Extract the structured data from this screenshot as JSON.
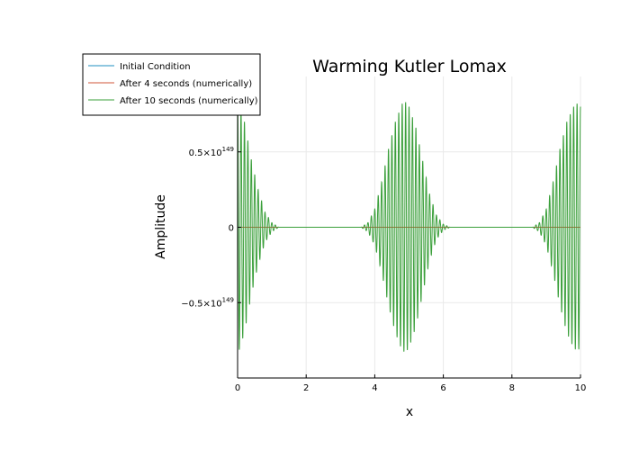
{
  "chart_data": {
    "type": "line",
    "title": "Warming Kutler Lomax",
    "xlabel": "x",
    "ylabel": "Amplitude",
    "xlim": [
      0,
      10
    ],
    "ylim": [
      -1e+149,
      1e+149
    ],
    "x_ticks": [
      0,
      2,
      4,
      6,
      8,
      10
    ],
    "x_tick_labels": [
      "0",
      "2",
      "4",
      "6",
      "8",
      "10"
    ],
    "y_ticks": [
      -5e+148,
      0,
      5e+148
    ],
    "y_tick_labels": [
      {
        "mantissa": "−0.5×10",
        "exp": "149"
      },
      {
        "mantissa": "0",
        "exp": ""
      },
      {
        "mantissa": "0.5×10",
        "exp": "149"
      }
    ],
    "grid": true,
    "legend_position": "top-left",
    "series": [
      {
        "name": "Initial Condition",
        "color": "#1f8fc0",
        "description": "indistinguishable from zero at this scale",
        "points": [
          [
            0,
            0
          ],
          [
            10,
            0
          ]
        ]
      },
      {
        "name": "After 4 seconds (numerically)",
        "color": "#d2553a",
        "description": "indistinguishable from zero at this scale",
        "points": [
          [
            0,
            0
          ],
          [
            10,
            0
          ]
        ]
      },
      {
        "name": "After 10 seconds (numerically)",
        "color": "#3a9f3a",
        "oscillation_cycles_per_unit": 10,
        "envelope": [
          [
            0.0,
            8.5e+148
          ],
          [
            0.2,
            7e+148
          ],
          [
            0.4,
            4.5e+148
          ],
          [
            0.6,
            2.5e+148
          ],
          [
            0.8,
            1e+148
          ],
          [
            1.0,
            3e+147
          ],
          [
            1.2,
            0.0
          ],
          [
            3.6,
            0.0
          ],
          [
            3.8,
            3e+147
          ],
          [
            4.0,
            1.2e+148
          ],
          [
            4.2,
            3e+148
          ],
          [
            4.4,
            5.2e+148
          ],
          [
            4.6,
            7e+148
          ],
          [
            4.8,
            8.2e+148
          ],
          [
            4.9,
            8.3e+148
          ],
          [
            5.0,
            8e+148
          ],
          [
            5.2,
            6.6e+148
          ],
          [
            5.4,
            4.4e+148
          ],
          [
            5.6,
            2.2e+148
          ],
          [
            5.8,
            8e+147
          ],
          [
            6.0,
            2e+147
          ],
          [
            6.2,
            0.0
          ],
          [
            8.6,
            0.0
          ],
          [
            8.8,
            3e+147
          ],
          [
            9.0,
            1.2e+148
          ],
          [
            9.2,
            3e+148
          ],
          [
            9.4,
            5.2e+148
          ],
          [
            9.6,
            7e+148
          ],
          [
            9.8,
            8e+148
          ],
          [
            9.9,
            8.2e+148
          ],
          [
            10.0,
            8e+148
          ]
        ]
      }
    ]
  }
}
